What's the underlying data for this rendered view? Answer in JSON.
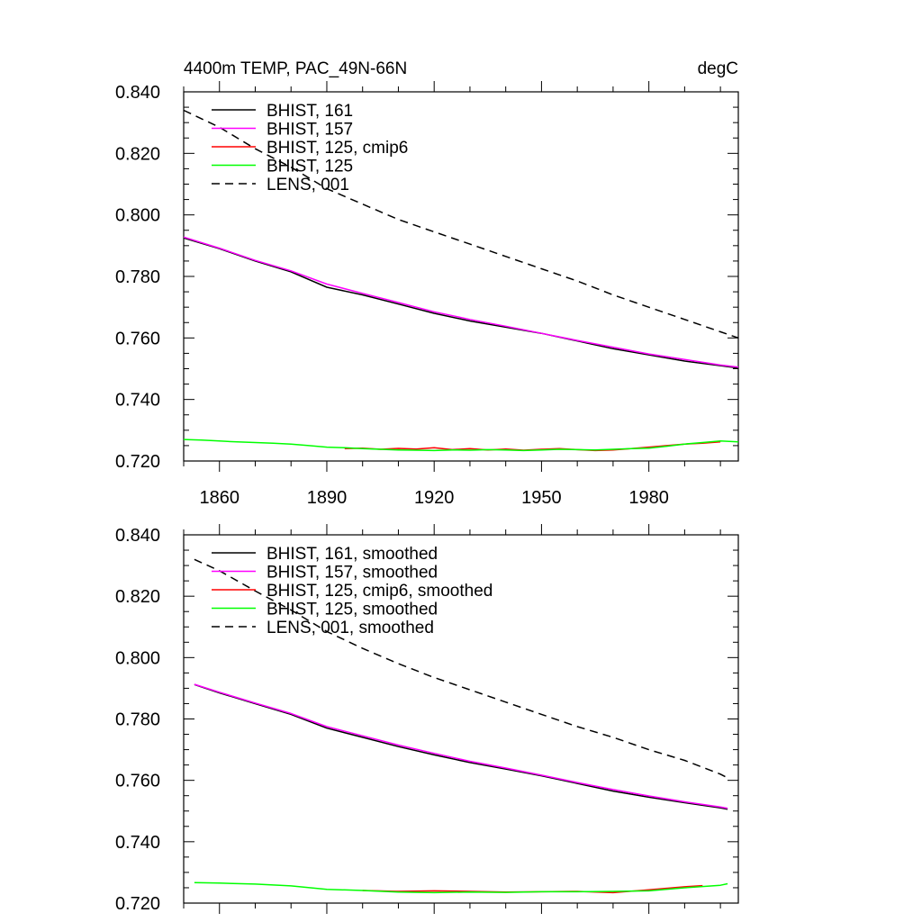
{
  "chart_data": [
    {
      "type": "line",
      "title": "4400m TEMP, PAC_49N-66N",
      "units": "degC",
      "xlim": [
        1850,
        2005
      ],
      "ylim": [
        0.72,
        0.84
      ],
      "xticks": [
        "1860",
        "1890",
        "1920",
        "1950",
        "1980"
      ],
      "yticks": [
        "0.720",
        "0.740",
        "0.760",
        "0.780",
        "0.800",
        "0.820",
        "0.840"
      ],
      "legend_position": "top-left",
      "series": [
        {
          "name": "BHIST, 161",
          "color": "#000000",
          "dash": "solid",
          "x": [
            1850,
            1860,
            1870,
            1880,
            1890,
            1900,
            1910,
            1920,
            1930,
            1940,
            1950,
            1960,
            1970,
            1980,
            1990,
            2000,
            2005
          ],
          "y": [
            0.7925,
            0.789,
            0.785,
            0.7815,
            0.7765,
            0.774,
            0.771,
            0.768,
            0.7655,
            0.7635,
            0.7615,
            0.759,
            0.7565,
            0.7545,
            0.7525,
            0.751,
            0.7502
          ]
        },
        {
          "name": "BHIST, 157",
          "color": "#ff00ff",
          "dash": "solid",
          "x": [
            1850,
            1860,
            1870,
            1880,
            1890,
            1900,
            1910,
            1920,
            1930,
            1940,
            1950,
            1960,
            1970,
            1980,
            1990,
            2000,
            2005
          ],
          "y": [
            0.7928,
            0.7892,
            0.7852,
            0.7818,
            0.7775,
            0.7745,
            0.7715,
            0.7685,
            0.766,
            0.7638,
            0.7615,
            0.7592,
            0.757,
            0.7548,
            0.753,
            0.7512,
            0.7505
          ]
        },
        {
          "name": "BHIST, 125, cmip6",
          "color": "#ff0000",
          "dash": "solid",
          "x": [
            1895,
            1900,
            1905,
            1910,
            1915,
            1920,
            1925,
            1930,
            1935,
            1940,
            1945,
            1950,
            1955,
            1960,
            1965,
            1970,
            1975,
            1980,
            1985,
            1990,
            1995,
            2000
          ],
          "y": [
            0.724,
            0.7242,
            0.7238,
            0.7241,
            0.7239,
            0.7243,
            0.7237,
            0.724,
            0.7236,
            0.7239,
            0.7235,
            0.7238,
            0.724,
            0.7237,
            0.7234,
            0.7236,
            0.724,
            0.7245,
            0.725,
            0.7255,
            0.7258,
            0.7262
          ]
        },
        {
          "name": "BHIST, 125",
          "color": "#00ff00",
          "dash": "solid",
          "x": [
            1850,
            1855,
            1860,
            1865,
            1870,
            1875,
            1880,
            1885,
            1890,
            1895,
            1900,
            1905,
            1910,
            1915,
            1920,
            1925,
            1930,
            1935,
            1940,
            1945,
            1950,
            1955,
            1960,
            1965,
            1970,
            1975,
            1980,
            1985,
            1990,
            1995,
            2000,
            2005
          ],
          "y": [
            0.727,
            0.7268,
            0.7265,
            0.7262,
            0.726,
            0.7258,
            0.7255,
            0.725,
            0.7245,
            0.7243,
            0.724,
            0.7238,
            0.7236,
            0.7235,
            0.7234,
            0.7236,
            0.7235,
            0.7237,
            0.7236,
            0.7234,
            0.7236,
            0.7238,
            0.7237,
            0.7236,
            0.7238,
            0.724,
            0.7242,
            0.7248,
            0.7255,
            0.726,
            0.7265,
            0.7262
          ]
        },
        {
          "name": "LENS, 001",
          "color": "#000000",
          "dash": "dashed",
          "x": [
            1850,
            1860,
            1870,
            1880,
            1890,
            1900,
            1910,
            1920,
            1930,
            1940,
            1950,
            1960,
            1970,
            1980,
            1990,
            2000,
            2005
          ],
          "y": [
            0.834,
            0.8285,
            0.8215,
            0.8155,
            0.8085,
            0.8035,
            0.7985,
            0.7945,
            0.7905,
            0.7865,
            0.7825,
            0.7785,
            0.774,
            0.77,
            0.766,
            0.762,
            0.76
          ]
        }
      ]
    },
    {
      "type": "line",
      "xlim": [
        1850,
        2005
      ],
      "ylim": [
        0.72,
        0.84
      ],
      "yticks": [
        "0.720",
        "0.740",
        "0.760",
        "0.780",
        "0.800",
        "0.820",
        "0.840"
      ],
      "legend_position": "top-left",
      "series": [
        {
          "name": "BHIST, 161, smoothed",
          "color": "#000000",
          "dash": "solid",
          "x": [
            1853,
            1860,
            1870,
            1880,
            1890,
            1900,
            1910,
            1920,
            1930,
            1940,
            1950,
            1960,
            1970,
            1980,
            1990,
            2000,
            2002
          ],
          "y": [
            0.7912,
            0.7885,
            0.785,
            0.7815,
            0.777,
            0.774,
            0.771,
            0.7683,
            0.7658,
            0.7637,
            0.7615,
            0.759,
            0.7565,
            0.7545,
            0.7527,
            0.751,
            0.7506
          ]
        },
        {
          "name": "BHIST, 157, smoothed",
          "color": "#ff00ff",
          "dash": "solid",
          "x": [
            1853,
            1860,
            1870,
            1880,
            1890,
            1900,
            1910,
            1920,
            1930,
            1940,
            1950,
            1960,
            1970,
            1980,
            1990,
            2000,
            2002
          ],
          "y": [
            0.7913,
            0.7887,
            0.7852,
            0.7818,
            0.7775,
            0.7745,
            0.7715,
            0.7688,
            0.7662,
            0.764,
            0.7617,
            0.7593,
            0.757,
            0.7549,
            0.753,
            0.7513,
            0.7509
          ]
        },
        {
          "name": "BHIST, 125, cmip6, smoothed",
          "color": "#ff0000",
          "dash": "solid",
          "x": [
            1900,
            1910,
            1920,
            1930,
            1940,
            1950,
            1960,
            1970,
            1980,
            1990,
            1995
          ],
          "y": [
            0.7241,
            0.7238,
            0.724,
            0.7238,
            0.7236,
            0.7237,
            0.7238,
            0.7234,
            0.7243,
            0.7253,
            0.7257
          ]
        },
        {
          "name": "BHIST, 125, smoothed",
          "color": "#00ff00",
          "dash": "solid",
          "x": [
            1853,
            1860,
            1870,
            1880,
            1890,
            1900,
            1910,
            1920,
            1930,
            1940,
            1950,
            1960,
            1970,
            1980,
            1990,
            2000,
            2002
          ],
          "y": [
            0.7267,
            0.7265,
            0.7262,
            0.7256,
            0.7245,
            0.7241,
            0.7236,
            0.7234,
            0.7236,
            0.7235,
            0.7237,
            0.7237,
            0.7238,
            0.724,
            0.725,
            0.7258,
            0.7263
          ]
        },
        {
          "name": "LENS, 001, smoothed",
          "color": "#000000",
          "dash": "dashed",
          "x": [
            1853,
            1860,
            1870,
            1880,
            1890,
            1900,
            1910,
            1920,
            1930,
            1940,
            1950,
            1960,
            1970,
            1980,
            1990,
            2000,
            2002
          ],
          "y": [
            0.832,
            0.8283,
            0.8217,
            0.8155,
            0.8085,
            0.803,
            0.798,
            0.7935,
            0.7895,
            0.7855,
            0.7815,
            0.7775,
            0.774,
            0.77,
            0.7665,
            0.762,
            0.7608
          ]
        }
      ]
    }
  ]
}
